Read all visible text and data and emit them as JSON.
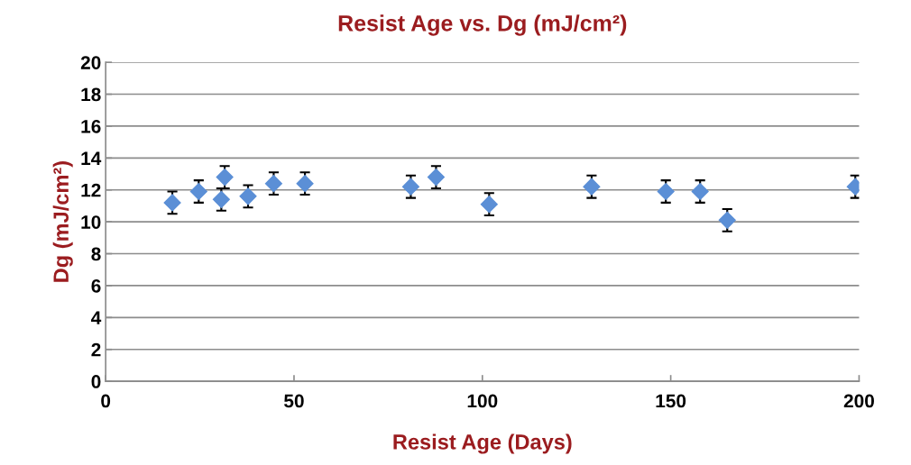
{
  "chart_data": {
    "type": "scatter",
    "title": "Resist Age vs. Dg (mJ/cm²)",
    "xlabel": "Resist Age (Days)",
    "ylabel": "Dg (mJ/cm²)",
    "x": [
      17.7,
      24.7,
      31.6,
      30.7,
      37.8,
      44.6,
      52.9,
      81,
      87.7,
      101.8,
      129,
      148.7,
      157.8,
      165,
      199
    ],
    "series": [
      {
        "color": "#5b8fd6",
        "values": [
          11.2,
          11.9,
          12.8,
          11.4,
          11.6,
          12.4,
          12.4,
          12.2,
          12.8,
          11.1,
          12.2,
          11.9,
          11.9,
          10.1,
          12.2
        ],
        "errors": [
          0.7,
          0.7,
          0.7,
          0.7,
          0.7,
          0.7,
          0.7,
          0.7,
          0.7,
          0.7,
          0.7,
          0.7,
          0.7,
          0.7,
          0.7
        ]
      }
    ],
    "xlim": [
      0,
      200
    ],
    "xticks": [
      0,
      50,
      100,
      150,
      200
    ],
    "ylim": [
      0,
      20
    ],
    "yticks": [
      0,
      2,
      4,
      6,
      8,
      10,
      12,
      14,
      16,
      18,
      20
    ],
    "grid": "y",
    "marker": "diamond"
  }
}
